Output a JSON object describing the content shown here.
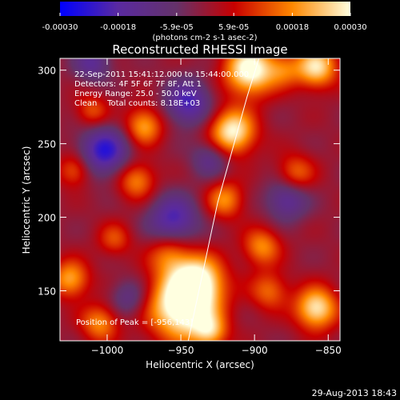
{
  "chart_data": {
    "type": "heatmap",
    "title": "Reconstructed RHESSI Image",
    "xlabel": "Heliocentric X (arcsec)",
    "ylabel": "Heliocentric Y (arcsec)",
    "xlim": [
      -1032,
      -842
    ],
    "ylim": [
      116,
      308
    ],
    "xticks": [
      -1000,
      -950,
      -900,
      -850
    ],
    "yticks": [
      150,
      200,
      250,
      300
    ],
    "colorbar": {
      "vmin": -0.0003,
      "vmax": 0.0003,
      "tick_values": [
        -0.0003,
        -0.00018,
        -5.9e-05,
        5.9e-05,
        0.00018,
        0.0003
      ],
      "tick_labels": [
        "-0.00030",
        "-0.00018",
        "-5.9e-05",
        "5.9e-05",
        "0.00018",
        "0.00030"
      ],
      "unit_label": "(photons cm-2 s-1 asec-2)",
      "colors": [
        "#0000ff",
        "#5a2aa0",
        "#64326a",
        "#c80000",
        "#ff8800",
        "#ffffe0"
      ]
    },
    "annotations": [
      "22-Sep-2011 15:41:12.000 to 15:44:00.000",
      "Detectors: 4F 5F 6F 7F 8F, Att 1",
      "Energy Range: 25.0 - 50.0 keV",
      "Clean    Total counts: 8.18E+03"
    ],
    "peak_label": "Position of Peak = [-956,143]",
    "peak": [
      -956,
      143
    ],
    "limb_line": [
      [
        -945,
        116
      ],
      [
        -925,
        210
      ],
      [
        -905,
        282
      ],
      [
        -897,
        308
      ]
    ],
    "sources": [
      {
        "x": -948,
        "y": 140,
        "amp": 1.3,
        "r": 16
      },
      {
        "x": -938,
        "y": 158,
        "amp": 0.8,
        "r": 12
      },
      {
        "x": -958,
        "y": 175,
        "amp": 0.5,
        "r": 10
      },
      {
        "x": -903,
        "y": 300,
        "amp": 1.1,
        "r": 12
      },
      {
        "x": -858,
        "y": 302,
        "amp": 0.9,
        "r": 10
      },
      {
        "x": -915,
        "y": 258,
        "amp": 1.0,
        "r": 11
      },
      {
        "x": -975,
        "y": 262,
        "amp": 0.7,
        "r": 9
      },
      {
        "x": -980,
        "y": 225,
        "amp": 0.6,
        "r": 9
      },
      {
        "x": -920,
        "y": 212,
        "amp": 0.6,
        "r": 9
      },
      {
        "x": -895,
        "y": 180,
        "amp": 0.6,
        "r": 9
      },
      {
        "x": -890,
        "y": 150,
        "amp": 0.5,
        "r": 9
      },
      {
        "x": -858,
        "y": 138,
        "amp": 0.95,
        "r": 10
      },
      {
        "x": -872,
        "y": 230,
        "amp": 0.5,
        "r": 9
      },
      {
        "x": -1025,
        "y": 158,
        "amp": 0.7,
        "r": 9
      },
      {
        "x": -1010,
        "y": 272,
        "amp": 0.45,
        "r": 8
      },
      {
        "x": -1005,
        "y": 128,
        "amp": 0.6,
        "r": 9
      },
      {
        "x": -1022,
        "y": 232,
        "amp": 0.5,
        "r": 8
      },
      {
        "x": -995,
        "y": 185,
        "amp": 0.4,
        "r": 8
      },
      {
        "x": -930,
        "y": 122,
        "amp": 0.6,
        "r": 8
      },
      {
        "x": -880,
        "y": 300,
        "amp": 0.4,
        "r": 8
      },
      {
        "x": -955,
        "y": 198,
        "amp": -0.7,
        "r": 12
      },
      {
        "x": -1002,
        "y": 245,
        "amp": -0.8,
        "r": 12
      },
      {
        "x": -945,
        "y": 278,
        "amp": -0.7,
        "r": 11
      },
      {
        "x": -878,
        "y": 212,
        "amp": -0.55,
        "r": 10
      },
      {
        "x": -1010,
        "y": 305,
        "amp": -0.5,
        "r": 9
      },
      {
        "x": -930,
        "y": 240,
        "amp": -0.45,
        "r": 9
      },
      {
        "x": -985,
        "y": 145,
        "amp": -0.4,
        "r": 9
      }
    ]
  },
  "footer": {
    "date": "29-Aug-2013 18:43"
  }
}
